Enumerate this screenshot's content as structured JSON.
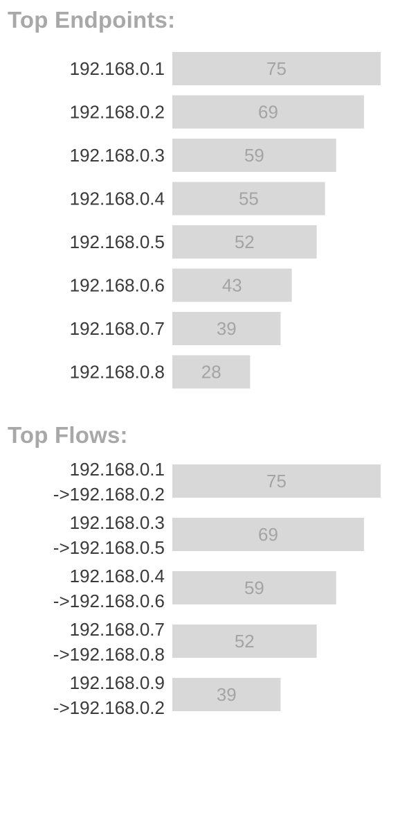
{
  "colors": {
    "title": "#a8a8a8",
    "bar": "#d8d8d8",
    "value_label": "#a4a4a4",
    "category_label": "#3a3a3a"
  },
  "chart_data": [
    {
      "type": "bar",
      "orientation": "horizontal",
      "title": "Top Endpoints:",
      "categories": [
        "192.168.0.1",
        "192.168.0.2",
        "192.168.0.3",
        "192.168.0.4",
        "192.168.0.5",
        "192.168.0.6",
        "192.168.0.7",
        "192.168.0.8"
      ],
      "values": [
        75,
        69,
        59,
        55,
        52,
        43,
        39,
        28
      ],
      "xlim": [
        0,
        75
      ],
      "grid": false,
      "data_labels": true
    },
    {
      "type": "bar",
      "orientation": "horizontal",
      "title": "Top Flows:",
      "categories": [
        [
          "192.168.0.1",
          "->192.168.0.2"
        ],
        [
          "192.168.0.3",
          "->192.168.0.5"
        ],
        [
          "192.168.0.4",
          "->192.168.0.6"
        ],
        [
          "192.168.0.7",
          "->192.168.0.8"
        ],
        [
          "192.168.0.9",
          "->192.168.0.2"
        ]
      ],
      "values": [
        75,
        69,
        59,
        52,
        39
      ],
      "xlim": [
        0,
        75
      ],
      "grid": false,
      "data_labels": true
    }
  ]
}
